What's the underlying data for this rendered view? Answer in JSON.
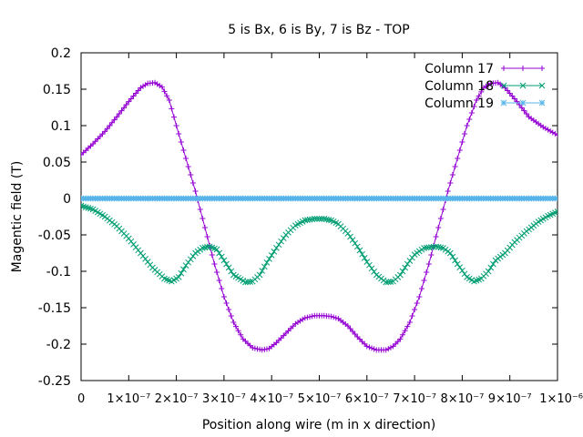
{
  "chart_data": {
    "type": "line",
    "title": "5 is Bx, 6 is By, 7 is Bz - TOP",
    "xlabel": "Position along wire (m in x direction)",
    "ylabel": "Magentic field (T)",
    "xlim": [
      0,
      1e-06
    ],
    "ylim": [
      -0.25,
      0.2
    ],
    "x_ticks": [
      {
        "value": 0,
        "label": "0"
      },
      {
        "value": 1e-07,
        "label": "1×10⁻⁷"
      },
      {
        "value": 2e-07,
        "label": "2×10⁻⁷"
      },
      {
        "value": 3e-07,
        "label": "3×10⁻⁷"
      },
      {
        "value": 4e-07,
        "label": "4×10⁻⁷"
      },
      {
        "value": 5e-07,
        "label": "5×10⁻⁷"
      },
      {
        "value": 6e-07,
        "label": "6×10⁻⁷"
      },
      {
        "value": 7e-07,
        "label": "7×10⁻⁷"
      },
      {
        "value": 8e-07,
        "label": "8×10⁻⁷"
      },
      {
        "value": 9e-07,
        "label": "9×10⁻⁷"
      },
      {
        "value": 1e-06,
        "label": "1×10⁻⁶"
      }
    ],
    "y_ticks": [
      {
        "value": 0.2,
        "label": "0.2"
      },
      {
        "value": 0.15,
        "label": "0.15"
      },
      {
        "value": 0.1,
        "label": "0.1"
      },
      {
        "value": 0.05,
        "label": "0.05"
      },
      {
        "value": 0,
        "label": "0"
      },
      {
        "value": -0.05,
        "label": "-0.05"
      },
      {
        "value": -0.1,
        "label": "-0.1"
      },
      {
        "value": -0.15,
        "label": "-0.15"
      },
      {
        "value": -0.2,
        "label": "-0.2"
      },
      {
        "value": -0.25,
        "label": "-0.25"
      }
    ],
    "grid": false,
    "legend_position": "top-right",
    "series": [
      {
        "name": "Column 17",
        "color": "#9400d3",
        "marker": "plus",
        "x": [
          0,
          2.5e-08,
          5e-08,
          7.5e-08,
          1e-07,
          1.25e-07,
          1.4e-07,
          1.55e-07,
          1.7e-07,
          1.85e-07,
          2e-07,
          2.2e-07,
          2.4e-07,
          2.6e-07,
          2.8e-07,
          3e-07,
          3.2e-07,
          3.4e-07,
          3.6e-07,
          3.8e-07,
          3.95e-07,
          4.1e-07,
          4.3e-07,
          4.5e-07,
          4.7e-07,
          4.9e-07,
          5.1e-07,
          5.25e-07,
          5.4e-07,
          5.6e-07,
          5.8e-07,
          6e-07,
          6.2e-07,
          6.4e-07,
          6.55e-07,
          6.7e-07,
          6.9e-07,
          7.1e-07,
          7.3e-07,
          7.5e-07,
          7.7e-07,
          7.9e-07,
          8.1e-07,
          8.3e-07,
          8.45e-07,
          8.6e-07,
          8.75e-07,
          8.9e-07,
          9.15e-07,
          9.4e-07,
          9.7e-07,
          1e-06
        ],
        "y": [
          0.06,
          0.075,
          0.092,
          0.112,
          0.133,
          0.152,
          0.158,
          0.159,
          0.153,
          0.135,
          0.1,
          0.055,
          0.01,
          -0.04,
          -0.09,
          -0.135,
          -0.17,
          -0.193,
          -0.205,
          -0.208,
          -0.206,
          -0.198,
          -0.185,
          -0.172,
          -0.164,
          -0.161,
          -0.161,
          -0.162,
          -0.165,
          -0.175,
          -0.19,
          -0.203,
          -0.208,
          -0.208,
          -0.203,
          -0.193,
          -0.17,
          -0.135,
          -0.09,
          -0.04,
          0.01,
          0.055,
          0.1,
          0.135,
          0.152,
          0.158,
          0.159,
          0.152,
          0.133,
          0.112,
          0.098,
          0.087
        ]
      },
      {
        "name": "Column 18",
        "color": "#009e73",
        "marker": "cross",
        "x": [
          0,
          2.5e-08,
          5e-08,
          7.5e-08,
          1e-07,
          1.25e-07,
          1.5e-07,
          1.75e-07,
          1.9e-07,
          2.05e-07,
          2.2e-07,
          2.4e-07,
          2.55e-07,
          2.7e-07,
          2.85e-07,
          3e-07,
          3.2e-07,
          3.45e-07,
          3.6e-07,
          3.75e-07,
          3.9e-07,
          4.1e-07,
          4.3e-07,
          4.5e-07,
          4.7e-07,
          4.9e-07,
          5.1e-07,
          5.25e-07,
          5.4e-07,
          5.6e-07,
          5.8e-07,
          6e-07,
          6.2e-07,
          6.4e-07,
          6.55e-07,
          6.7e-07,
          6.85e-07,
          7e-07,
          7.2e-07,
          7.45e-07,
          7.6e-07,
          7.75e-07,
          7.9e-07,
          8.1e-07,
          8.25e-07,
          8.4e-07,
          8.55e-07,
          8.7e-07,
          8.9e-07,
          9.1e-07,
          9.35e-07,
          9.6e-07,
          9.8e-07,
          1e-06
        ],
        "y": [
          -0.01,
          -0.015,
          -0.025,
          -0.038,
          -0.055,
          -0.075,
          -0.095,
          -0.11,
          -0.114,
          -0.108,
          -0.092,
          -0.075,
          -0.068,
          -0.066,
          -0.07,
          -0.085,
          -0.105,
          -0.115,
          -0.114,
          -0.105,
          -0.088,
          -0.068,
          -0.05,
          -0.037,
          -0.03,
          -0.028,
          -0.028,
          -0.03,
          -0.035,
          -0.048,
          -0.066,
          -0.087,
          -0.105,
          -0.115,
          -0.114,
          -0.105,
          -0.09,
          -0.077,
          -0.068,
          -0.066,
          -0.068,
          -0.075,
          -0.09,
          -0.108,
          -0.114,
          -0.11,
          -0.1,
          -0.085,
          -0.075,
          -0.06,
          -0.045,
          -0.032,
          -0.024,
          -0.018
        ]
      },
      {
        "name": "Column 19",
        "color": "#56b4e9",
        "marker": "star",
        "x": [
          0,
          1e-06
        ],
        "y": [
          0,
          0
        ]
      }
    ]
  }
}
